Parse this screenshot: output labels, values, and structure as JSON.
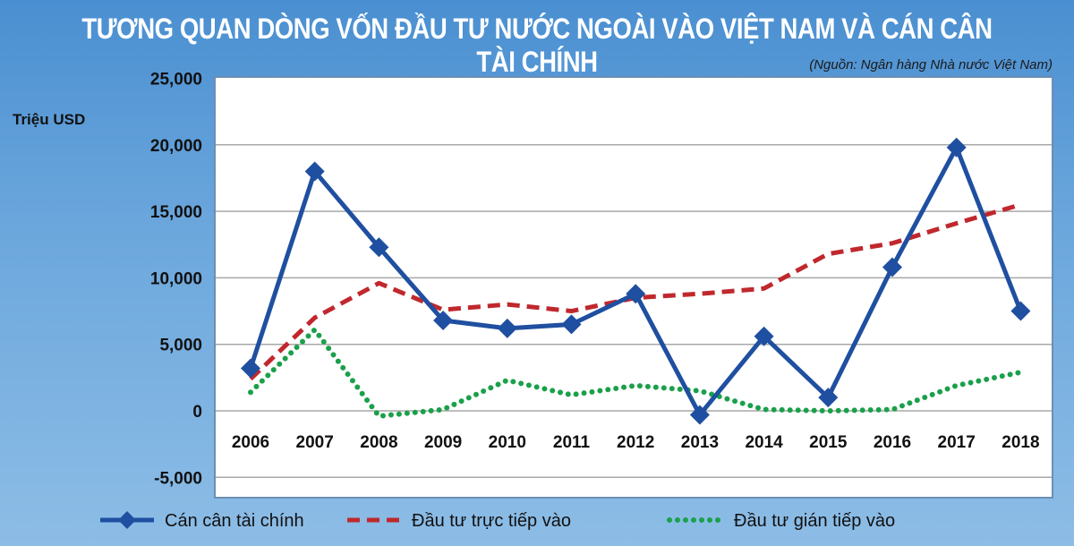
{
  "title": "TƯƠNG QUAN DÒNG VỐN ĐẦU TƯ NƯỚC NGOÀI VÀO VIỆT NAM VÀ CÁN CÂN TÀI CHÍNH",
  "source": "(Nguồn: Ngân hàng Nhà nước Việt Nam)",
  "chart_data": {
    "type": "line",
    "title": "TƯƠNG QUAN DÒNG VỐN ĐẦU TƯ NƯỚC NGOÀI VÀO VIỆT NAM VÀ CÁN CÂN TÀI CHÍNH",
    "ylabel": "Triệu USD",
    "xlabel": "",
    "categories": [
      "2006",
      "2007",
      "2008",
      "2009",
      "2010",
      "2011",
      "2012",
      "2013",
      "2014",
      "2015",
      "2016",
      "2017",
      "2018"
    ],
    "ylim": [
      -5000,
      25000
    ],
    "yticks": [
      25000,
      20000,
      15000,
      10000,
      5000,
      0,
      -5000
    ],
    "ytick_labels": [
      "25,000",
      "20,000",
      "15,000",
      "10,000",
      "5,000",
      "0",
      "-5,000"
    ],
    "grid": true,
    "legend_position": "bottom",
    "series": [
      {
        "name": "Cán cân tài chính",
        "color": "#1f4fa0",
        "style": "solid-diamond",
        "values": [
          3200,
          18000,
          12300,
          6800,
          6200,
          6500,
          8800,
          -300,
          5600,
          1000,
          10800,
          19800,
          7500
        ]
      },
      {
        "name": "Đầu tư trực tiếp vào",
        "color": "#c0282d",
        "style": "dashed",
        "values": [
          2400,
          7000,
          9600,
          7600,
          8000,
          7500,
          8500,
          8800,
          9200,
          11800,
          12600,
          14100,
          15500
        ]
      },
      {
        "name": "Đầu tư gián tiếp vào",
        "color": "#1aa04a",
        "style": "dotted",
        "values": [
          1400,
          6100,
          -400,
          100,
          2300,
          1200,
          1900,
          1500,
          100,
          0,
          100,
          1900,
          2900
        ]
      }
    ]
  }
}
